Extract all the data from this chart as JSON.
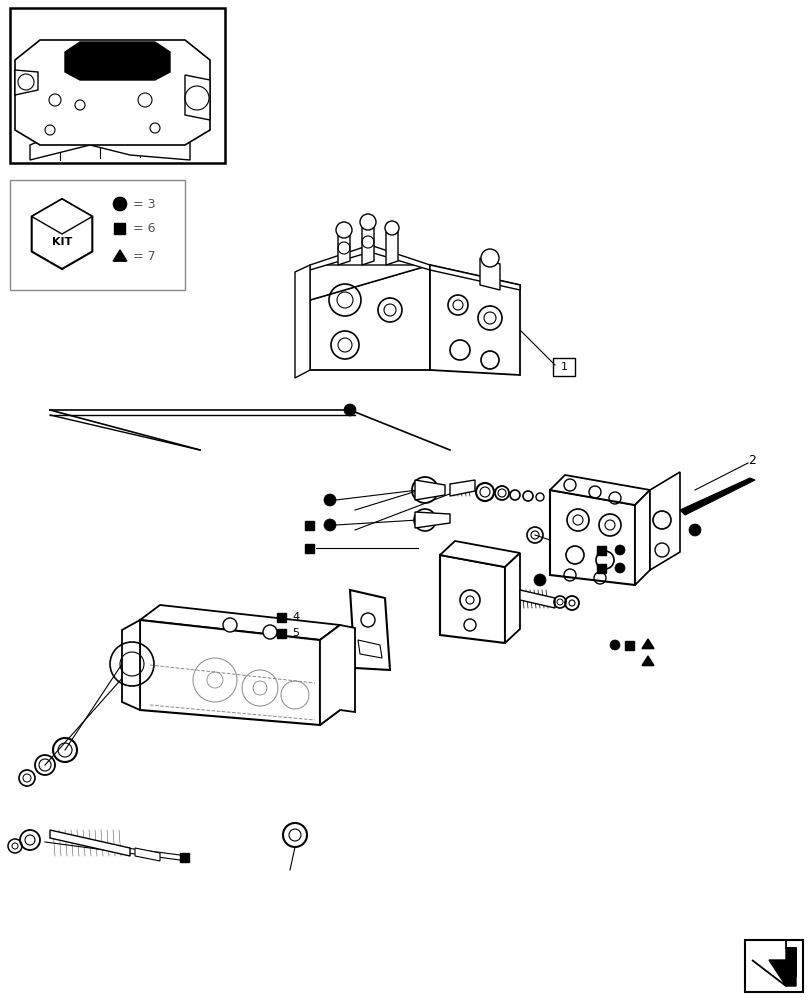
{
  "bg_color": "#ffffff",
  "fig_width": 8.12,
  "fig_height": 10.0,
  "dpi": 100,
  "kit_legend": {
    "circle_val": "3",
    "square_val": "6",
    "triangle_val": "7"
  },
  "part_labels": {
    "label1": "1",
    "label2": "2",
    "label4": "4",
    "label5": "5"
  },
  "colors": {
    "black": "#000000",
    "gray": "#999999",
    "light_gray": "#cccccc"
  }
}
